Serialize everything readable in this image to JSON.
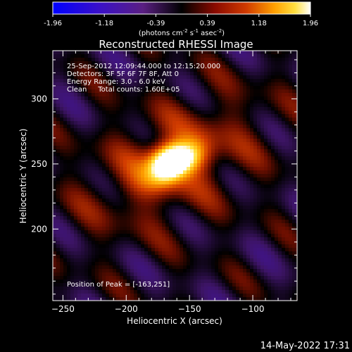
{
  "chart_data": {
    "type": "heatmap",
    "title": "Reconstructed RHESSI Image",
    "xlabel": "Heliocentric X (arcsec)",
    "ylabel": "Heliocentric Y (arcsec)",
    "x_ticks": [
      -250,
      -200,
      -150,
      -100
    ],
    "y_ticks": [
      200,
      250,
      300
    ],
    "xlim": [
      -258,
      -65
    ],
    "ylim": [
      145,
      337
    ],
    "grid": false,
    "colorbar": {
      "ticks": [
        "-1.96",
        "-1.18",
        "-0.39",
        "0.39",
        "1.18",
        "1.96"
      ],
      "range": [
        -1.96,
        1.96
      ],
      "unit_label_parts": [
        "(photons cm",
        "-2",
        " s",
        "-1",
        " asec",
        "-2",
        ")"
      ],
      "colormap": "heat (blue-purple-black-red-orange-yellow-white)"
    },
    "annotations": {
      "line1": "25-Sep-2012 12:09:44.000 to 12:15:20.000",
      "line2": "Detectors: 3F 5F 6F 7F 8F, Att 0",
      "line3": "Energy Range: 3.0 - 6.0 keV",
      "line4": "Clean     Total counts: 1.60E+05",
      "peak": "Position of Peak = [-163,251]"
    },
    "source": {
      "x": -163,
      "y": 251,
      "peak_value": 1.96
    },
    "timestamp": "14-May-2022 17:31"
  },
  "colors": {
    "background": "#000000",
    "text": "#ffffff",
    "cmap_blue": "#0000ff",
    "cmap_purple": "#5a1f82",
    "cmap_red": "#a01000",
    "cmap_yellow": "#ffd400",
    "cmap_white": "#ffffff"
  }
}
